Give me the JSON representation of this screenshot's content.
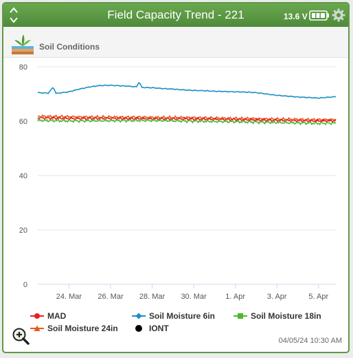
{
  "header": {
    "title": "Field Capacity Trend - 221",
    "voltage": "13.6 V"
  },
  "section": {
    "label": "Soil Conditions"
  },
  "timestamp": "04/05/24 10:30 AM",
  "colors": {
    "header_green": "#5e9a46",
    "mad": "#e8201c",
    "sm6": "#1a8fc9",
    "sm18": "#4fb533",
    "sm24": "#e85a20",
    "iont": "#000000"
  },
  "icons": [
    "chevron-up-icon",
    "chevron-down-icon",
    "battery-icon",
    "gear-icon",
    "soil-icon",
    "zoom-in-icon"
  ],
  "legend": [
    {
      "label": "MAD",
      "marker": "circle",
      "color": "#e8201c"
    },
    {
      "label": "Soil Moisture 6in",
      "marker": "diamond",
      "color": "#1a8fc9"
    },
    {
      "label": "Soil Moisture 18in",
      "marker": "square",
      "color": "#4fb533"
    },
    {
      "label": "Soil Moisture 24in",
      "marker": "triangle",
      "color": "#e85a20"
    },
    {
      "label": "IONT",
      "marker": "circle",
      "color": "#000000"
    }
  ],
  "chart_data": {
    "type": "line",
    "x_tick_labels": [
      "24. Mar",
      "26. Mar",
      "28. Mar",
      "30. Mar",
      "1. Apr",
      "3. Apr",
      "5. Apr"
    ],
    "x_ticks": [
      "2024-03-24",
      "2024-03-26",
      "2024-03-28",
      "2024-03-30",
      "2024-04-01",
      "2024-04-03",
      "2024-04-05"
    ],
    "xlim": [
      "2024-03-22T12:00",
      "2024-04-05T20:00"
    ],
    "ylim": [
      0,
      80
    ],
    "y_ticks": [
      0,
      20,
      40,
      60,
      80
    ],
    "grid": "horizontal",
    "legend_position": "bottom",
    "series": [
      {
        "name": "Soil Moisture 6in",
        "color": "#1a8fc9",
        "points": [
          [
            "2024-03-22T12:00",
            70.5
          ],
          [
            "2024-03-23T00:00",
            70.3
          ],
          [
            "2024-03-23T06:00",
            72.5
          ],
          [
            "2024-03-23T09:00",
            70.2
          ],
          [
            "2024-03-24T00:00",
            70.8
          ],
          [
            "2024-03-24T12:00",
            71.8
          ],
          [
            "2024-03-25T00:00",
            72.6
          ],
          [
            "2024-03-25T12:00",
            73.1
          ],
          [
            "2024-03-26T00:00",
            73.2
          ],
          [
            "2024-03-26T12:00",
            73.0
          ],
          [
            "2024-03-27T00:00",
            72.8
          ],
          [
            "2024-03-27T06:00",
            72.6
          ],
          [
            "2024-03-27T09:00",
            74.5
          ],
          [
            "2024-03-27T12:00",
            72.4
          ],
          [
            "2024-03-28T00:00",
            72.3
          ],
          [
            "2024-03-28T12:00",
            72.0
          ],
          [
            "2024-03-29T00:00",
            71.8
          ],
          [
            "2024-03-29T12:00",
            71.5
          ],
          [
            "2024-03-30T00:00",
            71.3
          ],
          [
            "2024-03-30T12:00",
            71.2
          ],
          [
            "2024-03-31T00:00",
            71.0
          ],
          [
            "2024-03-31T12:00",
            70.9
          ],
          [
            "2024-04-01T00:00",
            70.8
          ],
          [
            "2024-04-01T12:00",
            70.7
          ],
          [
            "2024-04-02T00:00",
            70.5
          ],
          [
            "2024-04-02T12:00",
            70.0
          ],
          [
            "2024-04-03T00:00",
            69.5
          ],
          [
            "2024-04-03T12:00",
            69.2
          ],
          [
            "2024-04-04T00:00",
            68.9
          ],
          [
            "2024-04-04T12:00",
            68.7
          ],
          [
            "2024-04-05T00:00",
            68.5
          ],
          [
            "2024-04-05T12:00",
            68.8
          ],
          [
            "2024-04-05T20:00",
            69.0
          ]
        ]
      },
      {
        "name": "Soil Moisture 24in",
        "color": "#e85a20",
        "points": [
          [
            "2024-03-22T12:00",
            61.8
          ],
          [
            "2024-03-24T00:00",
            61.6
          ],
          [
            "2024-03-26T00:00",
            61.5
          ],
          [
            "2024-03-28T00:00",
            61.4
          ],
          [
            "2024-03-30T00:00",
            61.3
          ],
          [
            "2024-04-01T00:00",
            61.0
          ],
          [
            "2024-04-03T00:00",
            60.8
          ],
          [
            "2024-04-05T00:00",
            60.5
          ],
          [
            "2024-04-05T20:00",
            60.6
          ]
        ]
      },
      {
        "name": "MAD",
        "color": "#e8201c",
        "points": [
          [
            "2024-03-22T12:00",
            61.2
          ],
          [
            "2024-03-24T00:00",
            61.0
          ],
          [
            "2024-03-26T00:00",
            61.0
          ],
          [
            "2024-03-28T00:00",
            60.9
          ],
          [
            "2024-03-30T00:00",
            60.8
          ],
          [
            "2024-04-01T00:00",
            60.6
          ],
          [
            "2024-04-03T00:00",
            60.3
          ],
          [
            "2024-04-05T00:00",
            60.1
          ],
          [
            "2024-04-05T20:00",
            60.2
          ]
        ]
      },
      {
        "name": "Soil Moisture 18in",
        "color": "#4fb533",
        "points": [
          [
            "2024-03-22T12:00",
            60.3
          ],
          [
            "2024-03-24T00:00",
            60.1
          ],
          [
            "2024-03-26T00:00",
            60.2
          ],
          [
            "2024-03-28T00:00",
            60.3
          ],
          [
            "2024-03-30T00:00",
            60.0
          ],
          [
            "2024-04-01T00:00",
            59.8
          ],
          [
            "2024-04-03T00:00",
            59.5
          ],
          [
            "2024-04-05T00:00",
            59.2
          ],
          [
            "2024-04-05T20:00",
            59.3
          ]
        ]
      }
    ]
  }
}
